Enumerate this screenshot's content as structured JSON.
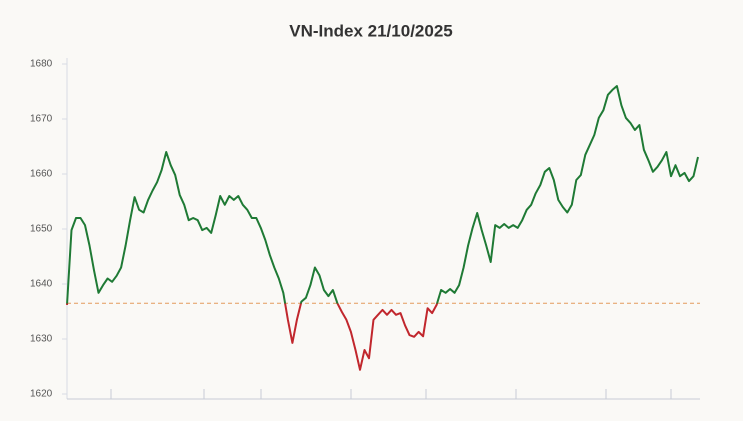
{
  "chart_data": {
    "type": "line",
    "title": "VN-Index 21/10/2025",
    "values": [
      1636.2,
      1649.8,
      1652,
      1652,
      1650.7,
      1647,
      1642.5,
      1638.4,
      1639.8,
      1641,
      1640.4,
      1641.5,
      1643,
      1647,
      1651.6,
      1655.8,
      1653.5,
      1653,
      1655.3,
      1657,
      1658.5,
      1660.7,
      1664,
      1661.6,
      1659.8,
      1656.2,
      1654.4,
      1651.6,
      1652,
      1651.6,
      1649.8,
      1650.2,
      1649.3,
      1652.5,
      1656,
      1654.4,
      1656,
      1655.3,
      1656,
      1654.4,
      1653.5,
      1652,
      1652,
      1650.2,
      1648,
      1645.3,
      1643,
      1641,
      1638.4,
      1633.5,
      1629.3,
      1633.5,
      1636.8,
      1637.5,
      1639.8,
      1643,
      1641.6,
      1638.9,
      1637.8,
      1638.9,
      1636.5,
      1634.9,
      1633.5,
      1631.3,
      1628,
      1624.4,
      1628,
      1626.5,
      1633.5,
      1634.4,
      1635.3,
      1634.4,
      1635.3,
      1634.4,
      1634.7,
      1632.5,
      1630.7,
      1630.4,
      1631.3,
      1630.5,
      1635.6,
      1634.7,
      1636.2,
      1638.9,
      1638.4,
      1639.1,
      1638.4,
      1639.8,
      1643,
      1647,
      1650.2,
      1652.9,
      1649.8,
      1647,
      1644,
      1650.7,
      1650.2,
      1650.9,
      1650.2,
      1650.7,
      1650.2,
      1651.6,
      1653.5,
      1654.4,
      1656.5,
      1658,
      1660.4,
      1661.1,
      1658.9,
      1655.3,
      1654,
      1653,
      1654.4,
      1658.9,
      1659.8,
      1663.5,
      1665.3,
      1667.1,
      1670.2,
      1671.6,
      1674.4,
      1675.3,
      1676,
      1672.5,
      1670.2,
      1669.3,
      1668,
      1668.9,
      1664.4,
      1662.5,
      1660.4,
      1661.3,
      1662.5,
      1664,
      1659.6,
      1661.6,
      1659.6,
      1660.2,
      1658.7,
      1659.6,
      1663.1
    ],
    "reference": 1636.5,
    "up_color": "#1f7a35",
    "down_color": "#c1272d",
    "reference_color": "#e39a5c",
    "ylim": [
      1620,
      1680
    ],
    "yticks": [
      1620,
      1630,
      1640,
      1650,
      1660,
      1670,
      1680
    ],
    "grid": false
  }
}
